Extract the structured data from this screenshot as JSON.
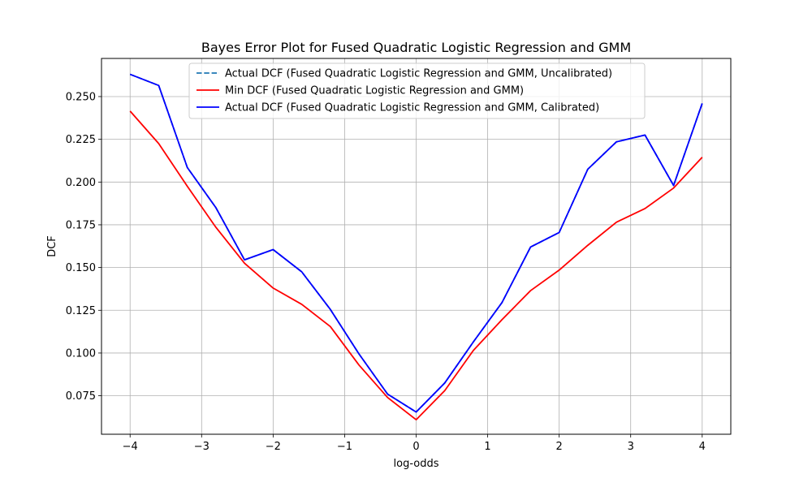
{
  "chart_data": {
    "type": "line",
    "title": "Bayes Error Plot for Fused Quadratic Logistic Regression and GMM",
    "xlabel": "log-odds",
    "ylabel": "DCF",
    "xlim": [
      -4.4,
      4.4
    ],
    "ylim": [
      0.0525,
      0.2723
    ],
    "grid": true,
    "legend_position": "top-center",
    "xticks": [
      -4,
      -3,
      -2,
      -1,
      0,
      1,
      2,
      3,
      4
    ],
    "xtick_labels": [
      "−4",
      "−3",
      "−2",
      "−1",
      "0",
      "1",
      "2",
      "3",
      "4"
    ],
    "yticks": [
      0.075,
      0.1,
      0.125,
      0.15,
      0.175,
      0.2,
      0.225,
      0.25
    ],
    "ytick_labels": [
      "0.075",
      "0.100",
      "0.125",
      "0.150",
      "0.175",
      "0.200",
      "0.225",
      "0.250"
    ],
    "x": [
      -4.0,
      -3.6,
      -3.2,
      -2.8,
      -2.4,
      -2.0,
      -1.6,
      -1.2,
      -0.8,
      -0.4,
      0.0,
      0.4,
      0.8,
      1.2,
      1.6,
      2.0,
      2.4,
      2.8,
      3.2,
      3.6,
      4.0
    ],
    "series": [
      {
        "name": "Actual DCF (Fused Quadratic Logistic Regression and GMM, Uncalibrated)",
        "color": "#1f77b4",
        "dash": "dashed",
        "values": [
          0.263,
          0.2565,
          0.2085,
          0.185,
          0.1545,
          0.1605,
          0.1475,
          0.1255,
          0.0995,
          0.076,
          0.0655,
          0.0825,
          0.1065,
          0.1295,
          0.162,
          0.1705,
          0.2075,
          0.2235,
          0.2275,
          0.198,
          0.246
        ]
      },
      {
        "name": "Min DCF (Fused Quadratic Logistic Regression and GMM)",
        "color": "#ff0000",
        "dash": "solid",
        "values": [
          0.2415,
          0.2225,
          0.1975,
          0.1735,
          0.1525,
          0.138,
          0.1285,
          0.1155,
          0.093,
          0.074,
          0.061,
          0.078,
          0.1015,
          0.1195,
          0.1365,
          0.1485,
          0.163,
          0.1765,
          0.1845,
          0.1965,
          0.2145
        ]
      },
      {
        "name": "Actual DCF (Fused Quadratic Logistic Regression and GMM, Calibrated)",
        "color": "#0000ff",
        "dash": "solid",
        "values": [
          0.263,
          0.2565,
          0.2085,
          0.185,
          0.1545,
          0.1605,
          0.1475,
          0.1255,
          0.0995,
          0.076,
          0.0655,
          0.0825,
          0.1065,
          0.1295,
          0.162,
          0.1705,
          0.2075,
          0.2235,
          0.2275,
          0.198,
          0.246
        ]
      }
    ]
  }
}
